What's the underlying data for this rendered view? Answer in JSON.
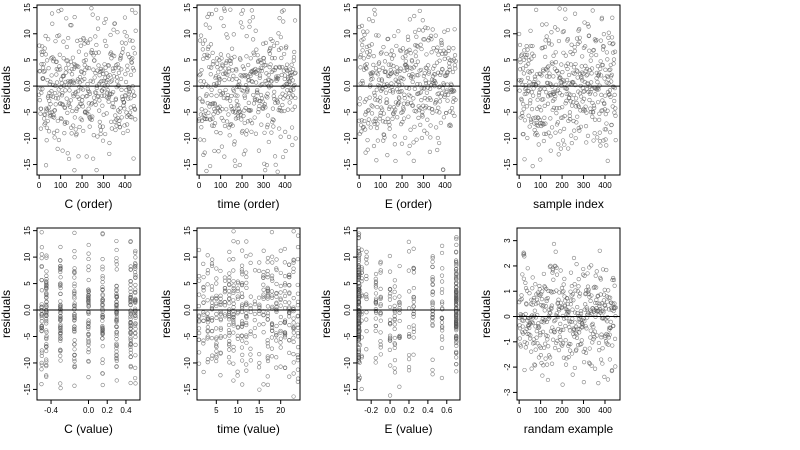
{
  "chart_data": [
    {
      "type": "scatter",
      "xlabel": "C (order)",
      "ylabel": "residuals",
      "xlim": [
        -10,
        470
      ],
      "ylim": [
        -17,
        15.5
      ],
      "xticks": [
        0,
        100,
        200,
        300,
        400
      ],
      "xtick_labels": [
        "0",
        "100",
        "200",
        "300",
        "400"
      ],
      "yticks": [
        -15,
        -10,
        -5,
        0,
        5,
        10,
        15
      ],
      "ytick_labels": [
        "-15",
        "-10",
        "-5",
        "0.0",
        "5",
        "10",
        "15"
      ],
      "hline": 0,
      "n_points": 450,
      "spread": 6,
      "x_kind": "order",
      "seed": 11
    },
    {
      "type": "scatter",
      "xlabel": "time (order)",
      "ylabel": "residuals",
      "xlim": [
        -10,
        470
      ],
      "ylim": [
        -17,
        15.5
      ],
      "xticks": [
        0,
        100,
        200,
        300,
        400
      ],
      "xtick_labels": [
        "0",
        "100",
        "200",
        "300",
        "400"
      ],
      "yticks": [
        -15,
        -10,
        -5,
        0,
        5,
        10,
        15
      ],
      "ytick_labels": [
        "-15",
        "-10",
        "-5",
        "0.0",
        "5",
        "10",
        "15"
      ],
      "hline": 0,
      "n_points": 450,
      "spread": 6,
      "x_kind": "order",
      "seed": 23
    },
    {
      "type": "scatter",
      "xlabel": "E (order)",
      "ylabel": "residuals",
      "xlim": [
        -10,
        470
      ],
      "ylim": [
        -17,
        15.5
      ],
      "xticks": [
        0,
        100,
        200,
        300,
        400
      ],
      "xtick_labels": [
        "0",
        "100",
        "200",
        "300",
        "400"
      ],
      "yticks": [
        -15,
        -10,
        -5,
        0,
        5,
        10,
        15
      ],
      "ytick_labels": [
        "-15",
        "-10",
        "-5",
        "0.0",
        "5",
        "10",
        "15"
      ],
      "hline": 0,
      "n_points": 450,
      "spread": 6,
      "x_kind": "order",
      "seed": 37
    },
    {
      "type": "scatter",
      "xlabel": "sample index",
      "ylabel": "residuals",
      "xlim": [
        -10,
        470
      ],
      "ylim": [
        -17,
        15.5
      ],
      "xticks": [
        0,
        100,
        200,
        300,
        400
      ],
      "xtick_labels": [
        "0",
        "100",
        "200",
        "300",
        "400"
      ],
      "yticks": [
        -15,
        -10,
        -5,
        0,
        5,
        10,
        15
      ],
      "ytick_labels": [
        "-15",
        "-10",
        "-5",
        "0.0",
        "5",
        "10",
        "15"
      ],
      "hline": 0,
      "n_points": 450,
      "spread": 6,
      "x_kind": "order",
      "seed": 41
    },
    {
      "type": "scatter",
      "xlabel": "C (value)",
      "ylabel": "residuals",
      "xlim": [
        -0.55,
        0.55
      ],
      "ylim": [
        -17,
        15.5
      ],
      "xticks": [
        -0.4,
        0.0,
        0.2,
        0.4
      ],
      "xtick_labels": [
        "-0.4",
        "0.0",
        "0.2",
        "0.4"
      ],
      "yticks": [
        -15,
        -10,
        -5,
        0,
        5,
        10,
        15
      ],
      "ytick_labels": [
        "-15",
        "-10",
        "-5",
        "0.0",
        "5",
        "10",
        "15"
      ],
      "hline": 0,
      "n_points": 450,
      "spread": 6,
      "x_kind": "discrete",
      "x_levels": [
        -0.5,
        -0.45,
        -0.3,
        -0.15,
        0.0,
        0.15,
        0.3,
        0.45,
        0.5
      ],
      "seed": 53
    },
    {
      "type": "scatter",
      "xlabel": "time (value)",
      "ylabel": "residuals",
      "xlim": [
        0.5,
        24.5
      ],
      "ylim": [
        -17,
        15.5
      ],
      "xticks": [
        5,
        10,
        15,
        20
      ],
      "xtick_labels": [
        "5",
        "10",
        "15",
        "20"
      ],
      "yticks": [
        -15,
        -10,
        -5,
        0,
        5,
        10,
        15
      ],
      "ytick_labels": [
        "-15",
        "-10",
        "-5",
        "0.0",
        "5",
        "10",
        "15"
      ],
      "hline": 0,
      "n_points": 450,
      "spread": 6,
      "x_kind": "discrete",
      "x_levels": [
        1,
        2,
        3,
        4,
        5,
        6,
        7,
        8,
        9,
        10,
        11,
        12,
        13,
        14,
        15,
        16,
        17,
        18,
        19,
        20,
        21,
        22,
        23,
        24
      ],
      "seed": 61
    },
    {
      "type": "scatter",
      "xlabel": "E (value)",
      "ylabel": "residuals",
      "xlim": [
        -0.35,
        0.74
      ],
      "ylim": [
        -17,
        15.5
      ],
      "xticks": [
        -0.2,
        0.0,
        0.2,
        0.4,
        0.6
      ],
      "xtick_labels": [
        "-0.2",
        "0.0",
        "0.2",
        "0.4",
        "0.6"
      ],
      "yticks": [
        -15,
        -10,
        -5,
        0,
        5,
        10,
        15
      ],
      "ytick_labels": [
        "-15",
        "-10",
        "-5",
        "0.0",
        "5",
        "10",
        "15"
      ],
      "hline": 0,
      "n_points": 450,
      "spread": 6,
      "x_kind": "discrete",
      "x_levels": [
        -0.33,
        -0.33,
        -0.33,
        -0.33,
        -0.33,
        -0.33,
        -0.33,
        -0.32,
        -0.3,
        -0.25,
        -0.15,
        -0.1,
        0.0,
        0.05,
        0.1,
        0.2,
        0.25,
        0.45,
        0.55,
        0.7,
        0.7,
        0.7,
        0.7,
        0.7,
        0.7
      ],
      "seed": 71
    },
    {
      "type": "scatter",
      "xlabel": "randam example",
      "ylabel": "residuals",
      "xlim": [
        -10,
        470
      ],
      "ylim": [
        -3.3,
        3.5
      ],
      "xticks": [
        0,
        100,
        200,
        300,
        400
      ],
      "xtick_labels": [
        "0",
        "100",
        "200",
        "300",
        "400"
      ],
      "yticks": [
        -3,
        -2,
        -1,
        0,
        1,
        2,
        3
      ],
      "ytick_labels": [
        "-3",
        "-2",
        "-1",
        "0",
        "1",
        "2",
        "3"
      ],
      "hline": 0,
      "n_points": 450,
      "spread": 1,
      "x_kind": "order",
      "seed": 83
    }
  ]
}
